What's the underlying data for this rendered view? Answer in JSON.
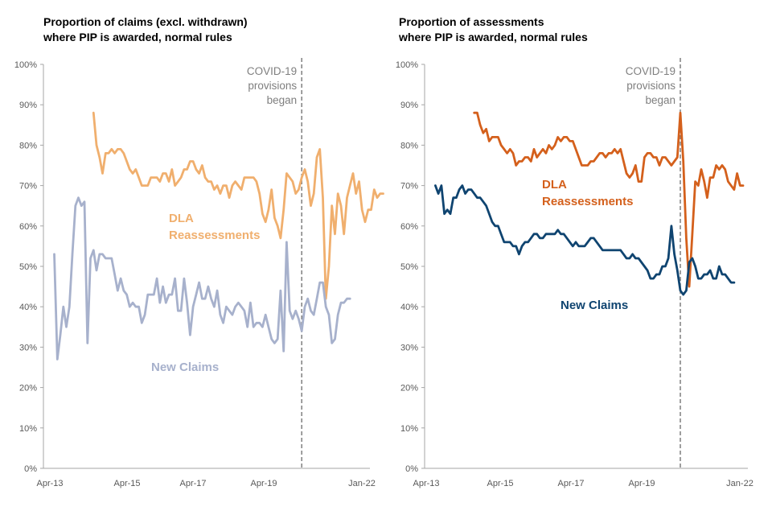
{
  "colors": {
    "dla_light": "#F0AF6E",
    "new_light": "#A7B1CC",
    "dla_dark": "#D4601C",
    "new_dark": "#0F4470",
    "axis": "#A6A6A6",
    "vline": "#7F7F7F",
    "tick_text": "#595959"
  },
  "chart_data": [
    {
      "type": "line",
      "title": "Proportion of claims (excl. withdrawn)\nwhere PIP is awarded, normal rules",
      "x_start": "Apr-13",
      "x_end": "Jan-22",
      "x_ticks": [
        "Apr-13",
        "Apr-15",
        "Apr-17",
        "Apr-19",
        "Jan-22"
      ],
      "y_ticks": [
        "0%",
        "10%",
        "20%",
        "30%",
        "40%",
        "50%",
        "60%",
        "70%",
        "80%",
        "90%",
        "100%"
      ],
      "ylim": [
        0,
        100
      ],
      "annotation": {
        "text": "COVID-19\nprovisions\nbegan",
        "x": "Apr-20"
      },
      "series": [
        {
          "name": "DLA\nReassessments",
          "x_start": "Jul-14",
          "values": [
            88,
            80,
            77,
            73,
            78,
            78,
            79,
            78,
            79,
            79,
            78,
            76,
            74,
            73,
            74,
            72,
            70,
            70,
            70,
            72,
            72,
            72,
            71,
            73,
            73,
            71,
            74,
            70,
            71,
            72,
            74,
            74,
            76,
            76,
            74,
            73,
            75,
            72,
            71,
            71,
            69,
            70,
            68,
            70,
            70,
            67,
            70,
            71,
            70,
            69,
            72,
            72,
            72,
            72,
            71,
            68,
            63,
            61,
            64,
            69,
            62,
            60,
            57,
            64,
            73,
            72,
            71,
            68,
            69,
            72,
            74,
            71,
            65,
            68,
            77,
            79,
            67,
            42,
            50,
            65,
            58,
            68,
            65,
            58,
            67,
            70,
            73,
            68,
            71,
            64,
            61,
            64,
            64,
            69,
            67,
            68,
            68
          ]
        },
        {
          "name": "New Claims",
          "x_start": "Jun-13",
          "values": [
            53,
            27,
            33,
            40,
            35,
            40,
            53,
            65,
            67,
            65,
            66,
            31,
            52,
            54,
            49,
            53,
            53,
            52,
            52,
            52,
            48,
            44,
            47,
            44,
            43,
            40,
            41,
            40,
            40,
            36,
            38,
            43,
            43,
            43,
            47,
            41,
            45,
            41,
            43,
            43,
            47,
            39,
            39,
            47,
            41,
            33,
            40,
            43,
            46,
            42,
            42,
            45,
            42,
            40,
            44,
            38,
            36,
            40,
            39,
            38,
            40,
            41,
            40,
            39,
            35,
            41,
            35,
            36,
            36,
            35,
            38,
            35,
            32,
            31,
            32,
            44,
            29,
            56,
            39,
            37,
            39,
            37,
            34,
            40,
            42,
            39,
            38,
            42,
            46,
            46,
            40,
            38,
            31,
            32,
            38,
            41,
            41,
            42,
            42
          ]
        }
      ],
      "series_label_colors": [
        "dla_light",
        "new_light"
      ]
    },
    {
      "type": "line",
      "title": "Proportion of assessments\nwhere PIP is awarded, normal rules",
      "x_start": "Apr-13",
      "x_end": "Jan-22",
      "x_ticks": [
        "Apr-13",
        "Apr-15",
        "Apr-17",
        "Apr-19",
        "Jan-22"
      ],
      "y_ticks": [
        "0%",
        "10%",
        "20%",
        "30%",
        "40%",
        "50%",
        "60%",
        "70%",
        "80%",
        "90%",
        "100%"
      ],
      "ylim": [
        0,
        100
      ],
      "annotation": {
        "text": "COVID-19\nprovisions\nbegan",
        "x": "Apr-20"
      },
      "series": [
        {
          "name": "DLA\nReassessments",
          "x_start": "Jul-14",
          "values": [
            88,
            88,
            85,
            83,
            84,
            81,
            82,
            82,
            82,
            80,
            79,
            78,
            79,
            78,
            75,
            76,
            76,
            77,
            77,
            76,
            79,
            77,
            78,
            79,
            78,
            80,
            79,
            80,
            82,
            81,
            82,
            82,
            81,
            81,
            79,
            77,
            75,
            75,
            75,
            76,
            76,
            77,
            78,
            78,
            77,
            78,
            78,
            79,
            78,
            79,
            76,
            73,
            72,
            73,
            75,
            71,
            71,
            77,
            78,
            78,
            77,
            77,
            75,
            77,
            77,
            76,
            75,
            76,
            77,
            88,
            76,
            57,
            45,
            58,
            71,
            70,
            74,
            71,
            67,
            72,
            72,
            75,
            74,
            75,
            74,
            71,
            70,
            69,
            73,
            70,
            70
          ]
        },
        {
          "name": "New Claims",
          "x_start": "Jun-13",
          "values": [
            70,
            68,
            70,
            63,
            64,
            63,
            67,
            67,
            69,
            70,
            68,
            69,
            69,
            68,
            67,
            67,
            66,
            65,
            63,
            61,
            60,
            60,
            58,
            56,
            56,
            56,
            55,
            55,
            53,
            55,
            56,
            56,
            57,
            58,
            58,
            57,
            57,
            58,
            58,
            58,
            58,
            59,
            58,
            58,
            57,
            56,
            55,
            56,
            55,
            55,
            55,
            56,
            57,
            57,
            56,
            55,
            54,
            54,
            54,
            54,
            54,
            54,
            54,
            53,
            52,
            52,
            53,
            52,
            52,
            51,
            50,
            49,
            47,
            47,
            48,
            48,
            50,
            50,
            52,
            60,
            53,
            49,
            44,
            43,
            44,
            51,
            52,
            50,
            47,
            47,
            48,
            48,
            49,
            47,
            47,
            50,
            48,
            48,
            47,
            46,
            46
          ]
        }
      ],
      "series_label_colors": [
        "dla_dark",
        "new_dark"
      ]
    }
  ]
}
